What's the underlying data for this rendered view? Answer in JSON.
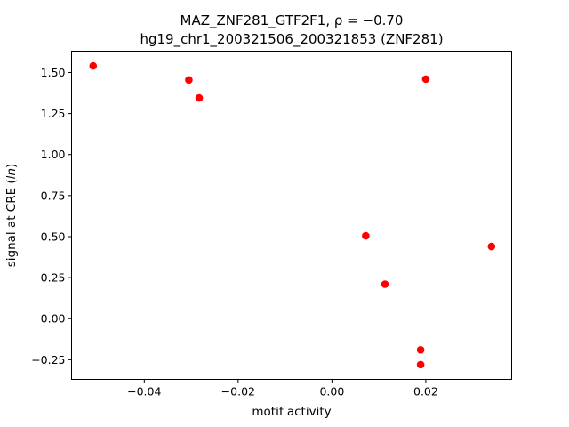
{
  "chart_data": {
    "type": "scatter",
    "title_line1": "MAZ_ZNF281_GTF2F1, ρ = −0.70",
    "title_line2": "hg19_chr1_200321506_200321853 (ZNF281)",
    "xlabel": "motif activity",
    "ylabel": "signal at CRE (ln)",
    "xlim": [
      -0.0555,
      0.0383
    ],
    "ylim": [
      -0.37,
      1.63
    ],
    "xticks": [
      -0.04,
      -0.02,
      0.0,
      0.02
    ],
    "xtick_labels": [
      "−0.04",
      "−0.02",
      "0.00",
      "0.02"
    ],
    "yticks": [
      -0.25,
      0.0,
      0.25,
      0.5,
      0.75,
      1.0,
      1.25,
      1.5
    ],
    "ytick_labels": [
      "−0.25",
      "0.00",
      "0.25",
      "0.50",
      "0.75",
      "1.00",
      "1.25",
      "1.50"
    ],
    "grid": false,
    "marker_color": "#ff0000",
    "points": [
      {
        "x": -0.0509,
        "y": 1.54
      },
      {
        "x": -0.0305,
        "y": 1.455
      },
      {
        "x": -0.0283,
        "y": 1.345
      },
      {
        "x": 0.02,
        "y": 1.46
      },
      {
        "x": 0.0072,
        "y": 0.505
      },
      {
        "x": 0.0113,
        "y": 0.21
      },
      {
        "x": 0.034,
        "y": 0.44
      },
      {
        "x": 0.0189,
        "y": -0.19
      },
      {
        "x": 0.0189,
        "y": -0.28
      }
    ]
  }
}
